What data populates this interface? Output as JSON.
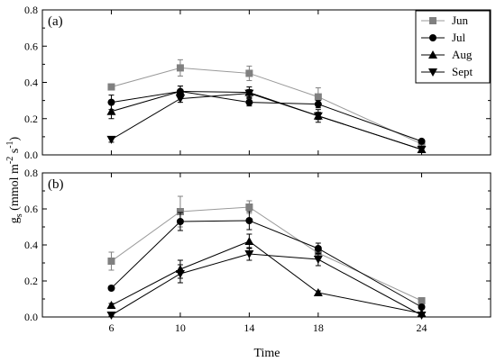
{
  "chart_data": {
    "type": "line",
    "xlabel": "Time",
    "ylabel_main": "g",
    "ylabel_sub": "s",
    "ylabel_unit_a": " (mmol m",
    "ylabel_sup_a": "-2",
    "ylabel_unit_b": " s",
    "ylabel_sup_b": "-1",
    "ylabel_close": ")",
    "x_ticks": [
      6,
      10,
      14,
      18,
      24
    ],
    "xlim": [
      2,
      28
    ],
    "legend": {
      "placement": "top-right",
      "panel": 0
    },
    "series_styles": [
      {
        "name": "Jun",
        "marker": "square",
        "color": "#808080",
        "line": "#9a9a9a"
      },
      {
        "name": "Jul",
        "marker": "circle",
        "color": "#000000",
        "line": "#000000"
      },
      {
        "name": "Aug",
        "marker": "triangle-up",
        "color": "#000000",
        "line": "#000000"
      },
      {
        "name": "Sept",
        "marker": "triangle-down",
        "color": "#000000",
        "line": "#000000"
      }
    ],
    "panels": [
      {
        "label": "(a)",
        "ylim": [
          0,
          0.8
        ],
        "y_ticks": [
          0.0,
          0.2,
          0.4,
          0.6,
          0.8
        ],
        "y_tick_labels": [
          "0.0",
          "0.2",
          "0.4",
          "0.6",
          "0.8"
        ],
        "series": [
          {
            "name": "Jun",
            "x": [
              6,
              10,
              14,
              18,
              24
            ],
            "y": [
              0.375,
              0.48,
              0.45,
              0.32,
              0.06
            ],
            "err": [
              0.015,
              0.045,
              0.04,
              0.05,
              0.01
            ]
          },
          {
            "name": "Jul",
            "x": [
              6,
              10,
              14,
              18,
              24
            ],
            "y": [
              0.29,
              0.35,
              0.29,
              0.28,
              0.075
            ],
            "err": [
              0.04,
              0.03,
              0.02,
              0.02,
              0.01
            ]
          },
          {
            "name": "Aug",
            "x": [
              6,
              10,
              14,
              18,
              24
            ],
            "y": [
              0.24,
              0.35,
              0.345,
              0.215,
              0.03
            ],
            "err": [
              0.04,
              0.03,
              0.03,
              0.035,
              0.01
            ]
          },
          {
            "name": "Sept",
            "x": [
              6,
              10,
              14,
              18,
              24
            ],
            "y": [
              0.085,
              0.31,
              0.34,
              0.215,
              0.03
            ],
            "err": [
              0.015,
              0.02,
              0.02,
              0.02,
              0.01
            ]
          }
        ]
      },
      {
        "label": "(b)",
        "ylim": [
          0,
          0.8
        ],
        "y_ticks": [
          0.0,
          0.2,
          0.4,
          0.6,
          0.8
        ],
        "y_tick_labels": [
          "0.0",
          "0.2",
          "0.4",
          "0.6",
          "0.8"
        ],
        "series": [
          {
            "name": "Jun",
            "x": [
              6,
              10,
              14,
              18,
              24
            ],
            "y": [
              0.31,
              0.585,
              0.61,
              0.355,
              0.09
            ],
            "err": [
              0.05,
              0.085,
              0.035,
              0.03,
              0.01
            ]
          },
          {
            "name": "Jul",
            "x": [
              6,
              10,
              14,
              18,
              24
            ],
            "y": [
              0.16,
              0.53,
              0.535,
              0.38,
              0.055
            ],
            "err": [
              0.01,
              0.05,
              0.05,
              0.03,
              0.01
            ]
          },
          {
            "name": "Aug",
            "x": [
              6,
              10,
              14,
              18,
              24
            ],
            "y": [
              0.065,
              0.265,
              0.42,
              0.135,
              0.02
            ],
            "err": [
              0.01,
              0.05,
              0.04,
              0.01,
              0.005
            ]
          },
          {
            "name": "Sept",
            "x": [
              6,
              10,
              14,
              18,
              24
            ],
            "y": [
              0.01,
              0.24,
              0.35,
              0.32,
              0.01
            ],
            "err": [
              0.005,
              0.05,
              0.035,
              0.035,
              0.005
            ]
          }
        ]
      }
    ]
  }
}
